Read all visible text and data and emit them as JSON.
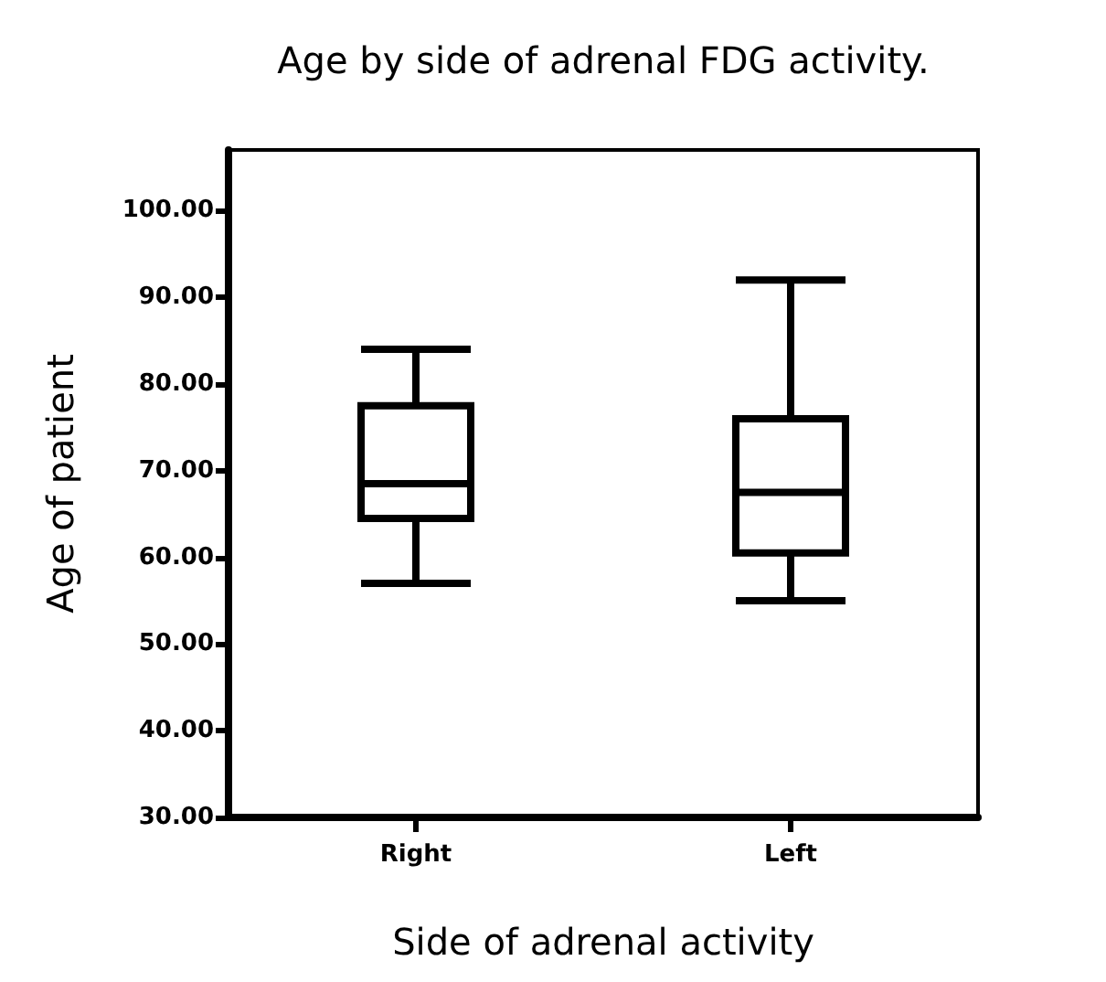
{
  "chart_data": {
    "type": "box",
    "title": "Age by side of adrenal FDG activity.",
    "xlabel": "Side of adrenal activity",
    "ylabel": "Age of patient",
    "categories": [
      "Right",
      "Left"
    ],
    "boxes": [
      {
        "low": 57,
        "q1": 64.5,
        "median": 68.5,
        "q3": 77.5,
        "high": 84
      },
      {
        "low": 55,
        "q1": 60.5,
        "median": 67.5,
        "q3": 76,
        "high": 92
      }
    ],
    "color": "#000000",
    "ylim": [
      30,
      107
    ],
    "yticks": [
      {
        "value": 30,
        "label": "30.00"
      },
      {
        "value": 40,
        "label": "40.00"
      },
      {
        "value": 50,
        "label": "50.00"
      },
      {
        "value": 60,
        "label": "60.00"
      },
      {
        "value": 70,
        "label": "70.00"
      },
      {
        "value": 80,
        "label": "80.00"
      },
      {
        "value": 90,
        "label": "90.00"
      },
      {
        "value": 100,
        "label": "100.00"
      }
    ],
    "grid": false
  }
}
